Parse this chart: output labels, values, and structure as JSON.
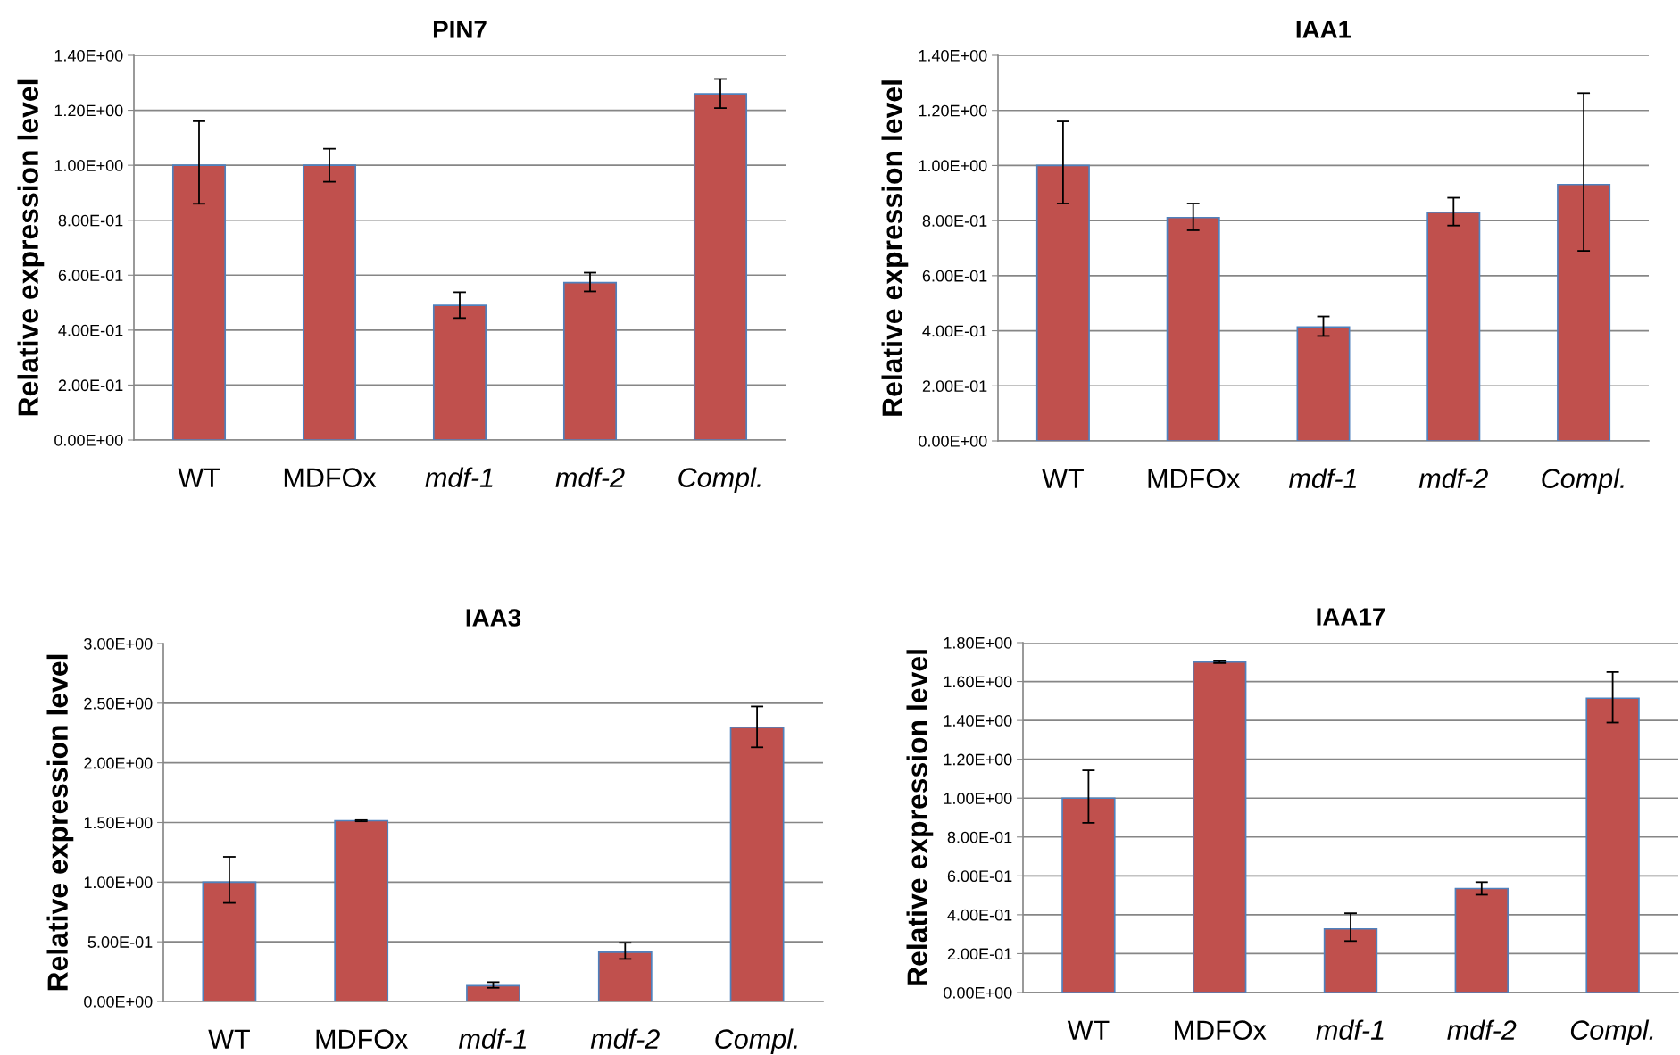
{
  "chart_data": [
    {
      "type": "bar",
      "title": "PIN7",
      "ylabel": "Relative expression level",
      "categories": [
        "WT",
        "MDFOx",
        "mdf-1",
        "mdf-2",
        "Compl."
      ],
      "values": [
        1.0,
        1.0,
        0.49,
        0.573,
        1.26
      ],
      "errors": [
        [
          0.86,
          1.16
        ],
        [
          0.94,
          1.06
        ],
        [
          0.444,
          0.538
        ],
        [
          0.541,
          0.609
        ],
        [
          1.208,
          1.314
        ]
      ],
      "color": "#c0504d",
      "ylim": [
        0,
        1.4
      ],
      "yticks": [
        {
          "value": 0,
          "label": "0.00E+00"
        },
        {
          "value": 0.2,
          "label": "2.00E-01"
        },
        {
          "value": 0.4,
          "label": "4.00E-01"
        },
        {
          "value": 0.6,
          "label": "6.00E-01"
        },
        {
          "value": 0.8,
          "label": "8.00E-01"
        },
        {
          "value": 1.0,
          "label": "1.00E+00"
        },
        {
          "value": 1.2,
          "label": "1.20E+00"
        },
        {
          "value": 1.4,
          "label": "1.40E+00"
        }
      ],
      "grid": "y"
    },
    {
      "type": "bar",
      "title": "IAA1",
      "ylabel": "Relative expression level",
      "categories": [
        "WT",
        "MDFOx",
        "mdf-1",
        "mdf-2",
        "Compl."
      ],
      "values": [
        1.0,
        0.811,
        0.414,
        0.83,
        0.931
      ],
      "errors": [
        [
          0.862,
          1.16
        ],
        [
          0.765,
          0.862
        ],
        [
          0.381,
          0.452
        ],
        [
          0.782,
          0.883
        ],
        [
          0.69,
          1.263
        ]
      ],
      "color": "#c0504d",
      "ylim": [
        0,
        1.4
      ],
      "yticks": [
        {
          "value": 0,
          "label": "0.00E+00"
        },
        {
          "value": 0.2,
          "label": "2.00E-01"
        },
        {
          "value": 0.4,
          "label": "4.00E-01"
        },
        {
          "value": 0.6,
          "label": "6.00E-01"
        },
        {
          "value": 0.8,
          "label": "8.00E-01"
        },
        {
          "value": 1.0,
          "label": "1.00E+00"
        },
        {
          "value": 1.2,
          "label": "1.20E+00"
        },
        {
          "value": 1.4,
          "label": "1.40E+00"
        }
      ],
      "grid": "y"
    },
    {
      "type": "bar",
      "title": "IAA3",
      "ylabel": "Relative expression level",
      "categories": [
        "WT",
        "MDFOx",
        "mdf-1",
        "mdf-2",
        "Compl."
      ],
      "values": [
        1.0,
        1.515,
        0.132,
        0.413,
        2.297
      ],
      "errors": [
        [
          0.826,
          1.212
        ],
        [
          1.51,
          1.52
        ],
        [
          0.114,
          0.162
        ],
        [
          0.356,
          0.492
        ],
        [
          2.13,
          2.473
        ]
      ],
      "color": "#c0504d",
      "ylim": [
        0,
        3.0
      ],
      "yticks": [
        {
          "value": 0,
          "label": "0.00E+00"
        },
        {
          "value": 0.5,
          "label": "5.00E-01"
        },
        {
          "value": 1.0,
          "label": "1.00E+00"
        },
        {
          "value": 1.5,
          "label": "1.50E+00"
        },
        {
          "value": 2.0,
          "label": "2.00E+00"
        },
        {
          "value": 2.5,
          "label": "2.50E+00"
        },
        {
          "value": 3.0,
          "label": "3.00E+00"
        }
      ],
      "grid": "y"
    },
    {
      "type": "bar",
      "title": "IAA17",
      "ylabel": "Relative expression level",
      "categories": [
        "WT",
        "MDFOx",
        "mdf-1",
        "mdf-2",
        "Compl."
      ],
      "values": [
        1.0,
        1.7,
        0.327,
        0.535,
        1.514
      ],
      "errors": [
        [
          0.873,
          1.143
        ],
        [
          1.695,
          1.705
        ],
        [
          0.265,
          0.408
        ],
        [
          0.503,
          0.568
        ],
        [
          1.389,
          1.649
        ]
      ],
      "color": "#c0504d",
      "ylim": [
        0,
        1.8
      ],
      "yticks": [
        {
          "value": 0,
          "label": "0.00E+00"
        },
        {
          "value": 0.2,
          "label": "2.00E-01"
        },
        {
          "value": 0.4,
          "label": "4.00E-01"
        },
        {
          "value": 0.6,
          "label": "6.00E-01"
        },
        {
          "value": 0.8,
          "label": "8.00E-01"
        },
        {
          "value": 1.0,
          "label": "1.00E+00"
        },
        {
          "value": 1.2,
          "label": "1.20E+00"
        },
        {
          "value": 1.4,
          "label": "1.40E+00"
        },
        {
          "value": 1.6,
          "label": "1.60E+00"
        },
        {
          "value": 1.8,
          "label": "1.80E+00"
        }
      ],
      "grid": "y"
    }
  ]
}
